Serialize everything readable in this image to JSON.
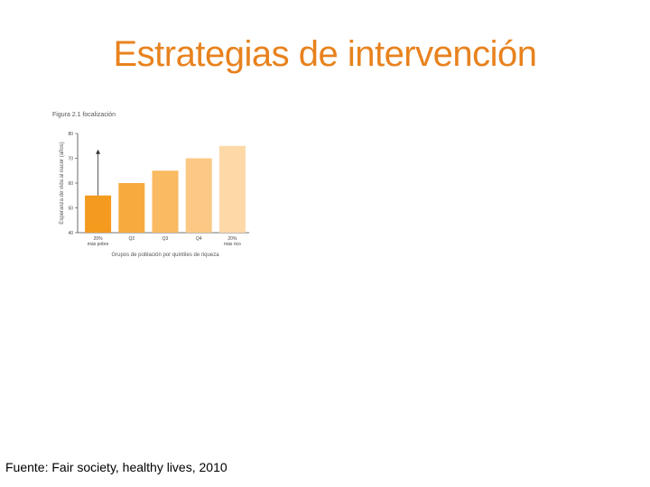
{
  "slide": {
    "title": "Estrategias de intervención",
    "source": "Fuente: Fair society, healthy lives, 2010"
  },
  "figure": {
    "caption": "Figura 2.1 focalización"
  },
  "chart_data": {
    "type": "bar",
    "categories": [
      "20%\nmás pobre",
      "Q2",
      "Q3",
      "Q4",
      "20%\nmás rico"
    ],
    "values": [
      55,
      60,
      65,
      70,
      75
    ],
    "xlabel": "Grupos de población por quintiles de riqueza",
    "ylabel": "Esperanza de vida al nacer (años)",
    "ylim": [
      40,
      80
    ],
    "yticks": [
      40,
      50,
      60,
      70,
      80
    ],
    "colors": [
      "#f39a1f",
      "#f7ab3f",
      "#f9ba62",
      "#fbc985",
      "#fdd9a8"
    ],
    "annotation": "arrow",
    "grid": false
  }
}
